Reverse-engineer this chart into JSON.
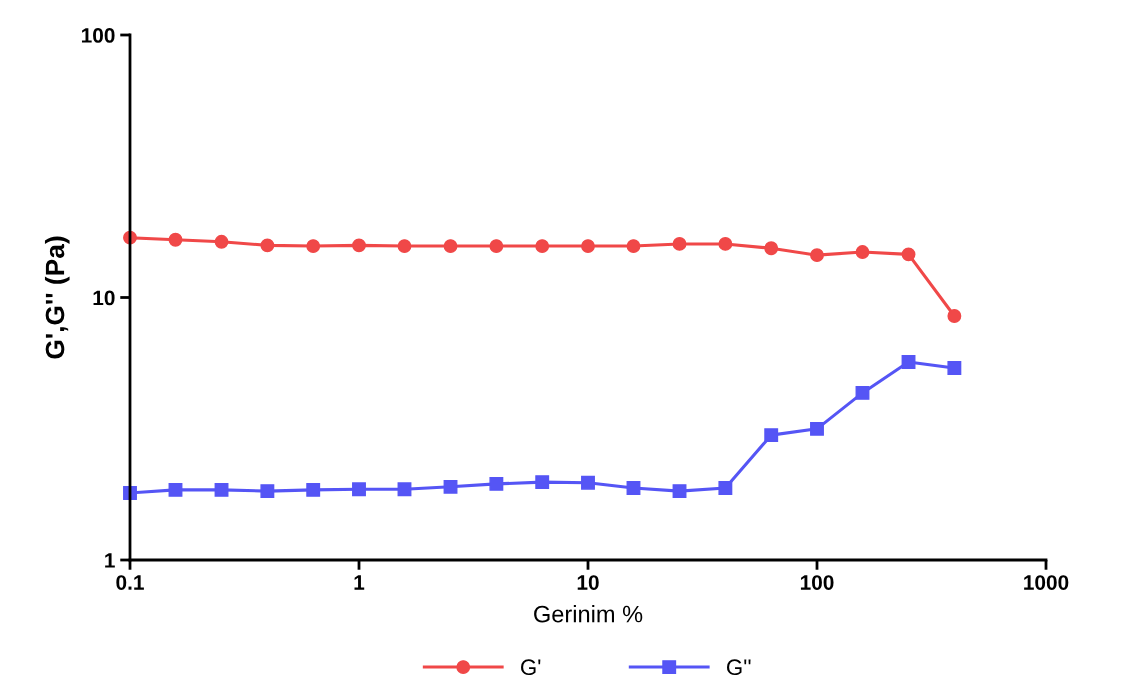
{
  "chart_data": {
    "type": "line",
    "xlabel": "Gerinim %",
    "ylabel": "G',G'' (Pa)",
    "log": "xy",
    "x": [
      0.1,
      0.158,
      0.251,
      0.398,
      0.631,
      1,
      1.58,
      2.51,
      3.98,
      6.31,
      10,
      15.8,
      25.1,
      39.8,
      63.1,
      100,
      158,
      251,
      398
    ],
    "series": [
      {
        "name": "G'",
        "color": "#f04848",
        "marker": "circle",
        "values": [
          16.9,
          16.6,
          16.3,
          15.8,
          15.7,
          15.8,
          15.7,
          15.7,
          15.7,
          15.7,
          15.7,
          15.7,
          16.0,
          16.0,
          15.4,
          14.5,
          14.9,
          14.6,
          8.5
        ]
      },
      {
        "name": "G''",
        "color": "#5555f5",
        "marker": "square",
        "values": [
          1.8,
          1.85,
          1.85,
          1.83,
          1.85,
          1.86,
          1.86,
          1.9,
          1.95,
          1.98,
          1.97,
          1.88,
          1.83,
          1.88,
          2.99,
          3.16,
          4.33,
          5.68,
          5.39
        ]
      }
    ],
    "xlim": [
      0.1,
      1000
    ],
    "xticks": [
      0.1,
      1,
      10,
      100,
      1000
    ],
    "ylim": [
      1,
      100
    ],
    "yticks": [
      1,
      10,
      100
    ],
    "grid": false,
    "legend": "bottom"
  }
}
